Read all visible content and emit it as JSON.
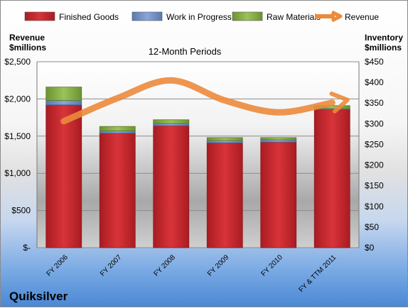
{
  "chart_data": {
    "type": "bar",
    "title": "12-Month Periods",
    "company": "Quiksilver",
    "left_axis_label": [
      "Revenue",
      "$millions"
    ],
    "right_axis_label": [
      "Inventory",
      "$millions"
    ],
    "categories": [
      "FY 2006",
      "FY 2007",
      "FY 2008",
      "FY 2009",
      "FY 2010",
      "FY & TTM 2011"
    ],
    "left_ticks": [
      "$-",
      "$500",
      "$1,000",
      "$1,500",
      "$2,000",
      "$2,500"
    ],
    "right_ticks": [
      "$0",
      "$50",
      "$100",
      "$150",
      "$200",
      "$250",
      "$300",
      "$350",
      "$400",
      "$450"
    ],
    "ylim_left": [
      0,
      2500
    ],
    "ylim_right": [
      0,
      450
    ],
    "series": [
      {
        "name": "Finished Goods",
        "color": "#c8242a",
        "values": [
          1920,
          1540,
          1640,
          1410,
          1420,
          1860
        ]
      },
      {
        "name": "Work in Progress",
        "color": "#6d8cc4",
        "values": [
          60,
          30,
          30,
          30,
          30,
          10
        ]
      },
      {
        "name": "Raw Materials",
        "color": "#86ad43",
        "values": [
          180,
          60,
          50,
          40,
          30,
          40
        ]
      }
    ],
    "revenue": {
      "name": "Revenue",
      "color": "#ec8a3c",
      "values": [
        1700,
        2010,
        2250,
        1980,
        1820,
        1950
      ]
    },
    "legend_position": "top",
    "grid": true
  }
}
